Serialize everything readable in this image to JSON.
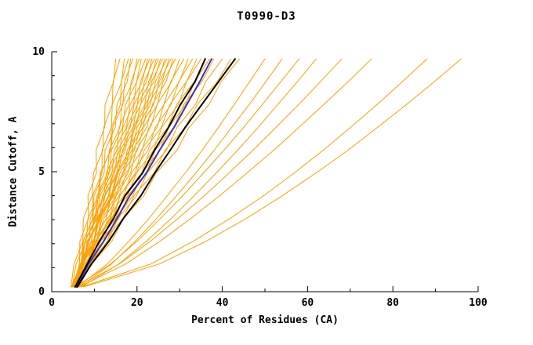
{
  "chart_data": {
    "type": "line",
    "title": "T0990-D3",
    "xlabel": "Percent of Residues (CA)",
    "ylabel": "Distance Cutoff, A",
    "xlim": [
      0,
      100
    ],
    "ylim": [
      0,
      10
    ],
    "xticks_major": [
      0,
      20,
      40,
      60,
      80,
      100
    ],
    "xticks_minor": [
      10,
      30,
      50,
      70,
      90
    ],
    "yticks_major": [
      0,
      5,
      10
    ],
    "yticks_minor": [
      1,
      2,
      3,
      4,
      6,
      7,
      8,
      9
    ],
    "grid": false,
    "legend": "none",
    "colors": {
      "orange": "#FFA000",
      "black": "#000000",
      "blue": "#3535C2"
    },
    "cutoffs": [
      0.2,
      1.15,
      2.1,
      3.05,
      4.0,
      4.95,
      5.9,
      6.85,
      7.8,
      8.75,
      9.7
    ],
    "series": [
      {
        "color": "orange",
        "width": 1,
        "x": [
          5,
          6.5,
          6.6,
          8.6,
          8.5,
          10.5,
          10.4,
          12.4,
          12.5,
          14.5,
          15
        ]
      },
      {
        "color": "orange",
        "width": 1,
        "x": [
          4.5,
          5.2,
          7.3,
          7.4,
          9.5,
          9.8,
          12,
          12.2,
          14.2,
          14.4,
          16
        ]
      },
      {
        "color": "orange",
        "width": 1,
        "x": [
          5.5,
          7.2,
          7.4,
          9.6,
          9.6,
          11.8,
          11.8,
          14,
          14.2,
          16.4,
          17
        ]
      },
      {
        "color": "orange",
        "width": 1,
        "x": [
          6,
          6.7,
          8.9,
          9,
          11.2,
          11.5,
          13.8,
          14,
          16.1,
          16.3,
          18
        ]
      },
      {
        "color": "orange",
        "width": 1,
        "x": [
          5,
          6.9,
          7.3,
          9.7,
          9.9,
          12.3,
          12.5,
          14.9,
          15.3,
          17.7,
          18.5
        ]
      },
      {
        "color": "orange",
        "width": 1,
        "x": [
          4.8,
          5.7,
          8.1,
          8.5,
          10.9,
          11.4,
          13.9,
          14.3,
          16.7,
          17.1,
          19
        ]
      },
      {
        "color": "orange",
        "width": 1,
        "x": [
          5.2,
          7.2,
          7.8,
          10.2,
          10.6,
          13.1,
          13.5,
          16,
          16.5,
          19,
          20
        ]
      },
      {
        "color": "orange",
        "width": 1,
        "x": [
          6,
          7,
          9.4,
          9.8,
          12.2,
          12.8,
          15.3,
          15.8,
          18.1,
          18.6,
          20.5
        ]
      },
      {
        "color": "orange",
        "width": 1,
        "x": [
          5,
          7.1,
          7.8,
          10.4,
          10.9,
          13.5,
          14,
          16.6,
          17.3,
          19.9,
          21
        ]
      },
      {
        "color": "orange",
        "width": 1,
        "x": [
          5.5,
          6.7,
          9.3,
          9.9,
          12.5,
          13.3,
          16,
          16.7,
          19.2,
          19.9,
          22
        ]
      },
      {
        "color": "orange",
        "width": 1,
        "x": [
          4.6,
          6.9,
          7.8,
          10.6,
          11.3,
          14.1,
          14.7,
          17.5,
          18.4,
          21.2,
          22.5
        ]
      },
      {
        "color": "orange",
        "width": 1,
        "x": [
          6.2,
          7.4,
          10.1,
          10.6,
          13.3,
          14.1,
          16.9,
          17.6,
          20.1,
          20.8,
          23
        ]
      },
      {
        "color": "orange",
        "width": 1,
        "x": [
          5,
          7.4,
          8.3,
          11.2,
          11.9,
          14.8,
          15.5,
          18.4,
          19.3,
          22.2,
          23.5
        ]
      },
      {
        "color": "orange",
        "width": 1,
        "x": [
          5.8,
          7.1,
          9.9,
          10.7,
          13.5,
          14.4,
          17.3,
          18.1,
          20.9,
          21.7,
          24
        ]
      },
      {
        "color": "orange",
        "width": 1,
        "x": [
          5.1,
          7.5,
          8.6,
          11.5,
          12.4,
          15.3,
          16.1,
          19.1,
          20.1,
          23.1,
          24.5
        ]
      },
      {
        "color": "orange",
        "width": 1,
        "x": [
          6.5,
          7.9,
          10.7,
          11.5,
          14.3,
          15.3,
          18.2,
          19.1,
          21.8,
          22.7,
          25
        ]
      },
      {
        "color": "orange",
        "width": 1,
        "x": [
          4.7,
          7.3,
          8.5,
          11.5,
          12.5,
          15.6,
          16.6,
          19.7,
          20.8,
          23.9,
          25.5
        ]
      },
      {
        "color": "orange",
        "width": 1,
        "x": [
          5.3,
          6.9,
          9.9,
          10.9,
          14,
          15.2,
          18.3,
          19.4,
          22.4,
          23.4,
          26
        ]
      },
      {
        "color": "orange",
        "width": 1,
        "x": [
          6,
          8.6,
          9.7,
          12.8,
          13.7,
          16.8,
          17.7,
          20.8,
          21.9,
          25,
          26.5
        ]
      },
      {
        "color": "orange",
        "width": 1,
        "x": [
          5,
          6.7,
          9.9,
          11,
          14.2,
          15.5,
          18.8,
          20,
          23.1,
          24.3,
          27
        ]
      },
      {
        "color": "orange",
        "width": 1,
        "x": [
          5.6,
          8.3,
          9.6,
          12.8,
          13.9,
          17.1,
          18.2,
          21.4,
          22.6,
          25.8,
          27.5
        ]
      },
      {
        "color": "orange",
        "width": 1,
        "x": [
          4.9,
          6.7,
          10,
          11.2,
          14.5,
          16,
          19.4,
          20.7,
          23.9,
          25.2,
          28
        ]
      },
      {
        "color": "orange",
        "width": 1,
        "x": [
          6.3,
          9,
          10.3,
          13.6,
          14.7,
          17.9,
          19,
          22.3,
          23.6,
          26.8,
          28.5
        ]
      },
      {
        "color": "orange",
        "width": 1,
        "x": [
          5.2,
          7.1,
          10.5,
          11.8,
          15.1,
          16.6,
          20.1,
          21.5,
          24.8,
          26.1,
          29
        ]
      },
      {
        "color": "orange",
        "width": 1,
        "x": [
          5.9,
          8.8,
          10.3,
          13.8,
          15.1,
          18.5,
          19.8,
          23.2,
          24.7,
          28.1,
          30
        ]
      },
      {
        "color": "orange",
        "width": 1,
        "x": [
          5,
          7.1,
          10.7,
          12.2,
          15.8,
          17.5,
          21.2,
          22.8,
          26.3,
          27.9,
          31
        ]
      },
      {
        "color": "orange",
        "width": 1,
        "x": [
          6.1,
          9.2,
          10.9,
          14.5,
          16,
          19.6,
          21,
          24.7,
          26.3,
          29.9,
          32
        ]
      },
      {
        "color": "orange",
        "width": 1,
        "x": [
          5.4,
          7.7,
          11.4,
          13.1,
          16.9,
          18.7,
          22.6,
          24.3,
          28,
          29.8,
          33
        ]
      },
      {
        "color": "orange",
        "width": 1,
        "x": [
          4.8,
          8.2,
          10.3,
          14.2,
          16,
          19.9,
          21.7,
          25.7,
          27.7,
          31.6,
          34
        ]
      },
      {
        "color": "orange",
        "width": 1,
        "x": [
          5.7,
          8.1,
          12.1,
          13.9,
          17.8,
          19.9,
          23.9,
          25.8,
          29.7,
          31.6,
          35
        ]
      },
      {
        "color": "orange",
        "width": 1,
        "x": [
          5.1,
          8.7,
          10.9,
          15,
          17,
          21.1,
          23,
          27.2,
          29.3,
          33.4,
          36
        ]
      },
      {
        "color": "orange",
        "width": 1,
        "x": [
          6.4,
          9,
          13,
          15,
          19,
          21.2,
          25.4,
          27.4,
          31.4,
          33.5,
          37
        ]
      },
      {
        "color": "orange",
        "width": 1,
        "x": [
          5.3,
          9.1,
          11.5,
          15.7,
          17.9,
          22.2,
          24.3,
          28.6,
          31,
          35.2,
          38
        ]
      },
      {
        "color": "orange",
        "width": 1,
        "x": [
          5.8,
          8.7,
          13.2,
          15.5,
          19.9,
          22.4,
          26.9,
          29.4,
          33.7,
          36.1,
          40
        ]
      },
      {
        "color": "orange",
        "width": 1,
        "x": [
          5,
          9.2,
          12,
          16.7,
          19.3,
          24,
          26.6,
          31.3,
          34.1,
          38.8,
          42
        ]
      },
      {
        "color": "orange",
        "width": 1,
        "x": [
          6,
          9.3,
          14.1,
          16.8,
          21.6,
          24.5,
          29.4,
          32.2,
          36.9,
          39.7,
          44
        ]
      },
      {
        "color": "orange",
        "width": 1,
        "x": [
          6,
          13,
          18.1,
          22.8,
          27.1,
          31.3,
          35.3,
          39.1,
          42.8,
          46.4,
          50
        ]
      },
      {
        "color": "orange",
        "width": 1,
        "x": [
          6.5,
          14,
          19.6,
          24.6,
          29.3,
          33.8,
          38.1,
          42.2,
          46.3,
          50.2,
          54
        ]
      },
      {
        "color": "orange",
        "width": 1,
        "x": [
          5.5,
          13.8,
          20,
          25.5,
          30.7,
          35.6,
          40.4,
          45,
          49.4,
          53.7,
          58
        ]
      },
      {
        "color": "orange",
        "width": 1,
        "x": [
          7,
          15.7,
          22.2,
          28,
          33.4,
          38.6,
          43.6,
          48.4,
          53,
          57.6,
          62
        ]
      },
      {
        "color": "orange",
        "width": 1,
        "x": [
          6,
          15.8,
          23.1,
          29.6,
          35.8,
          41.6,
          47.2,
          52.6,
          57.9,
          63,
          68
        ]
      },
      {
        "color": "orange",
        "width": 1,
        "x": [
          6.5,
          17.3,
          25.4,
          32.6,
          39.4,
          45.8,
          52.1,
          58,
          63.8,
          69.5,
          75
        ]
      },
      {
        "color": "orange",
        "width": 1,
        "x": [
          7,
          23.2,
          33.2,
          41.8,
          49.7,
          56.9,
          63.7,
          70.1,
          76.3,
          82.2,
          88
        ]
      },
      {
        "color": "orange",
        "width": 1,
        "x": [
          7.5,
          25.2,
          36.2,
          45.6,
          54.1,
          62,
          69.5,
          76.4,
          83.2,
          89.7,
          96
        ]
      },
      {
        "color": "blue",
        "width": 2,
        "x": [
          5.8,
          8.6,
          12.2,
          15.3,
          18.3,
          22.2,
          25.3,
          28.7,
          31.7,
          34.7,
          37.5
        ]
      },
      {
        "color": "black",
        "width": 2,
        "x": [
          5.5,
          8.3,
          11.2,
          14.5,
          17.2,
          21.3,
          24.1,
          27.4,
          30.2,
          33.6,
          36
        ]
      },
      {
        "color": "black",
        "width": 2,
        "x": [
          6,
          9.3,
          13.4,
          16.8,
          20.9,
          24.2,
          27.8,
          31.3,
          35.2,
          39.1,
          43
        ]
      }
    ]
  }
}
